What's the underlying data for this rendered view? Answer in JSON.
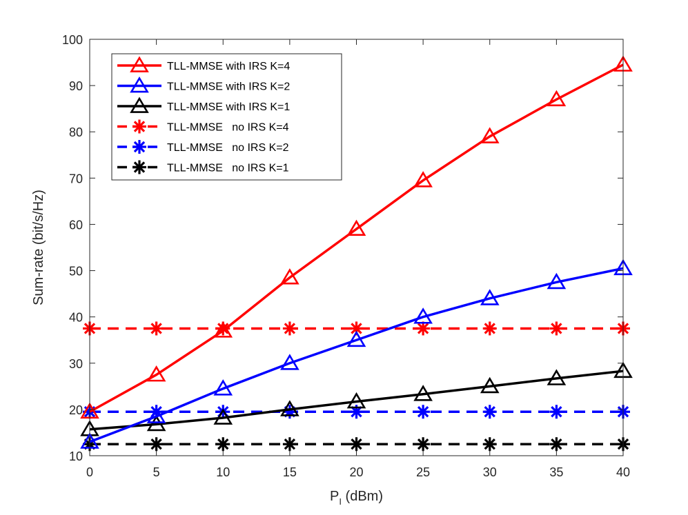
{
  "chart_data": {
    "type": "line",
    "title": "",
    "xlabel_main": "P",
    "xlabel_sub": "I",
    "xlabel_unit": " (dBm)",
    "ylabel": "Sum-rate (bit/s/Hz)",
    "x": [
      0,
      5,
      10,
      15,
      20,
      25,
      30,
      35,
      40
    ],
    "xlim": [
      0,
      40
    ],
    "ylim": [
      10,
      100
    ],
    "xticks": [
      0,
      5,
      10,
      15,
      20,
      25,
      30,
      35,
      40
    ],
    "yticks": [
      10,
      20,
      30,
      40,
      50,
      60,
      70,
      80,
      90,
      100
    ],
    "grid": false,
    "legend_position": "top-left",
    "series": [
      {
        "name": "TLL-MMSE with IRS K=4",
        "color": "#ff0000",
        "dash": "solid",
        "marker": "triangle",
        "values": [
          19.5,
          27.5,
          37.0,
          48.5,
          59.0,
          69.5,
          79.0,
          87.0,
          94.5
        ]
      },
      {
        "name": "TLL-MMSE with IRS K=2",
        "color": "#0000ff",
        "dash": "solid",
        "marker": "triangle",
        "values": [
          13.0,
          18.5,
          24.5,
          30.0,
          35.0,
          40.0,
          44.0,
          47.5,
          50.5
        ]
      },
      {
        "name": "TLL-MMSE with IRS K=1",
        "color": "#000000",
        "dash": "solid",
        "marker": "triangle",
        "values": [
          15.7,
          16.8,
          18.2,
          20.0,
          21.7,
          23.3,
          25.0,
          26.7,
          28.3
        ]
      },
      {
        "name": "TLL-MMSE   no IRS K=4",
        "color": "#ff0000",
        "dash": "dashed",
        "marker": "asterisk",
        "values": [
          37.5,
          37.5,
          37.5,
          37.5,
          37.5,
          37.5,
          37.5,
          37.5,
          37.5
        ]
      },
      {
        "name": "TLL-MMSE   no IRS K=2",
        "color": "#0000ff",
        "dash": "dashed",
        "marker": "asterisk",
        "values": [
          19.5,
          19.5,
          19.5,
          19.5,
          19.5,
          19.5,
          19.5,
          19.5,
          19.5
        ]
      },
      {
        "name": "TLL-MMSE   no IRS K=1",
        "color": "#000000",
        "dash": "dashed",
        "marker": "asterisk",
        "values": [
          12.5,
          12.5,
          12.5,
          12.5,
          12.5,
          12.5,
          12.5,
          12.5,
          12.5
        ]
      }
    ]
  }
}
